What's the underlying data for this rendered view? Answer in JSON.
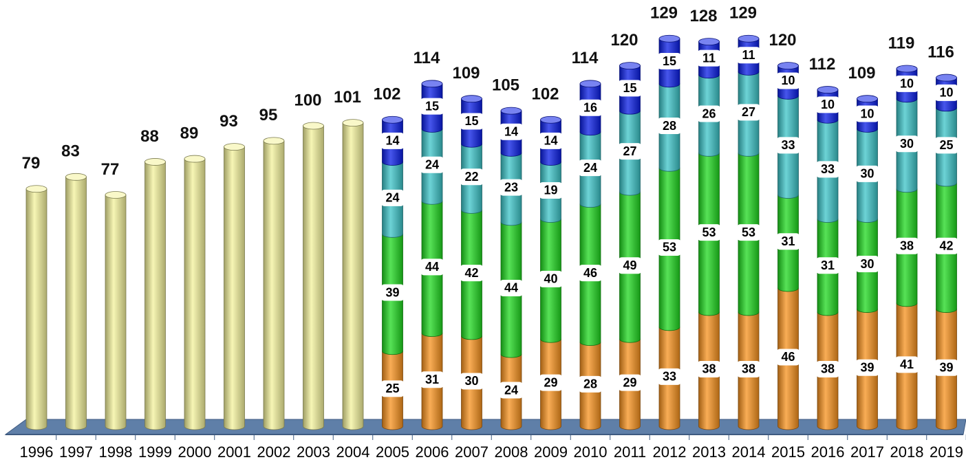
{
  "chart_data": {
    "type": "stacked-cylinder",
    "categories": [
      "1996",
      "1997",
      "1998",
      "1999",
      "2000",
      "2001",
      "2002",
      "2003",
      "2004",
      "2005",
      "2006",
      "2007",
      "2008",
      "2009",
      "2010",
      "2011",
      "2012",
      "2013",
      "2014",
      "2015",
      "2016",
      "2017",
      "2018",
      "2019"
    ],
    "series": [
      {
        "color": "#f4f39c",
        "values": [
          79,
          83,
          77,
          88,
          89,
          93,
          95,
          100,
          101,
          null,
          null,
          null,
          null,
          null,
          null,
          null,
          null,
          null,
          null,
          null,
          null,
          null,
          null,
          null
        ]
      },
      {
        "color": "#f7921e",
        "values": [
          null,
          null,
          null,
          null,
          null,
          null,
          null,
          null,
          null,
          25,
          31,
          30,
          24,
          29,
          28,
          29,
          33,
          38,
          38,
          46,
          38,
          39,
          41,
          39
        ]
      },
      {
        "color": "#1fd81f",
        "values": [
          null,
          null,
          null,
          null,
          null,
          null,
          null,
          null,
          null,
          39,
          44,
          42,
          44,
          40,
          46,
          49,
          53,
          53,
          53,
          31,
          31,
          30,
          38,
          42
        ]
      },
      {
        "color": "#3cc4c8",
        "values": [
          null,
          null,
          null,
          null,
          null,
          null,
          null,
          null,
          null,
          24,
          24,
          22,
          23,
          19,
          24,
          27,
          28,
          26,
          27,
          33,
          33,
          30,
          30,
          25
        ]
      },
      {
        "color": "#0a1ee6",
        "values": [
          null,
          null,
          null,
          null,
          null,
          null,
          null,
          null,
          null,
          14,
          15,
          15,
          14,
          14,
          16,
          15,
          15,
          11,
          11,
          10,
          10,
          10,
          10,
          10
        ]
      }
    ],
    "totals": [
      null,
      null,
      null,
      null,
      null,
      null,
      null,
      null,
      null,
      102,
      114,
      109,
      105,
      102,
      114,
      120,
      129,
      128,
      129,
      120,
      112,
      109,
      119,
      116
    ]
  }
}
